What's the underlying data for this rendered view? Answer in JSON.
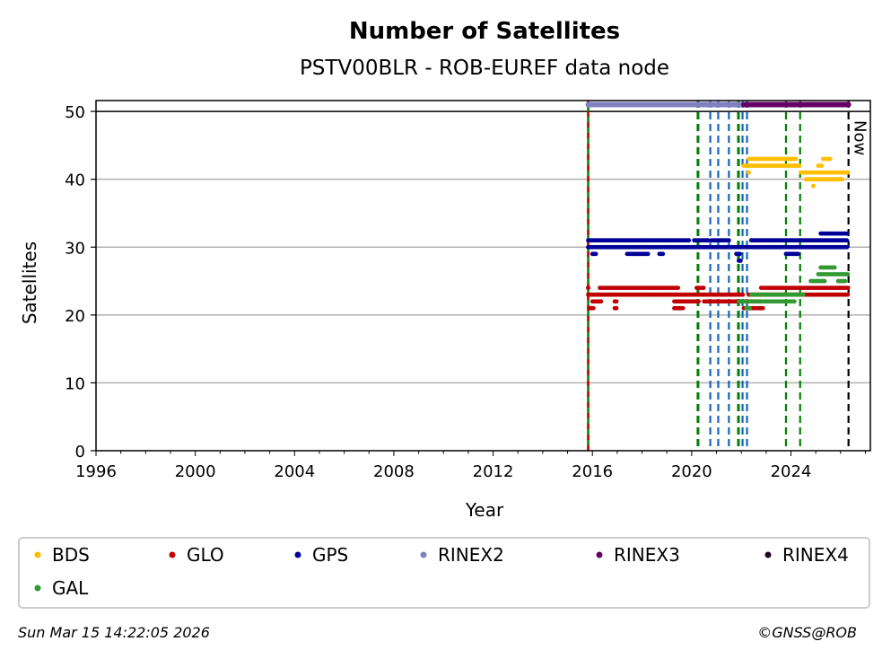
{
  "chart_data": {
    "type": "scatter",
    "title": "Number of Satellites",
    "subtitle": "PSTV00BLR - ROB-EUREF data node",
    "xlabel": "Year",
    "ylabel": "Satellites",
    "xlim": [
      1996,
      2027.2
    ],
    "ylim": [
      0,
      51.6
    ],
    "xticks": [
      "1996",
      "2000",
      "2004",
      "2008",
      "2012",
      "2016",
      "2020",
      "2024"
    ],
    "xtick_values": [
      1996,
      2000,
      2004,
      2008,
      2012,
      2016,
      2020,
      2024
    ],
    "yticks": [
      "0",
      "10",
      "20",
      "30",
      "40",
      "50"
    ],
    "ytick_values": [
      0,
      10,
      20,
      30,
      40,
      50
    ],
    "grid": "horizontal",
    "now_label": "Now",
    "now_year": 2026.32,
    "vlines": [
      {
        "year": 2015.83,
        "color": "#cc0000",
        "style": "red-green"
      },
      {
        "year": 2020.24,
        "color": "#008000"
      },
      {
        "year": 2020.27,
        "color": "#008000"
      },
      {
        "year": 2020.75,
        "color": "#1565c0"
      },
      {
        "year": 2021.07,
        "color": "#1565c0"
      },
      {
        "year": 2021.5,
        "color": "#1565c0"
      },
      {
        "year": 2021.87,
        "color": "#008000"
      },
      {
        "year": 2021.9,
        "color": "#008000"
      },
      {
        "year": 2022.05,
        "color": "#1565c0"
      },
      {
        "year": 2022.23,
        "color": "#1565c0"
      },
      {
        "year": 2023.8,
        "color": "#008000"
      },
      {
        "year": 2024.37,
        "color": "#008000"
      }
    ],
    "rinex_bars": [
      {
        "name": "RINEX2",
        "start": 2015.83,
        "end": 2022.1,
        "value": 51,
        "color": "#8080c0"
      },
      {
        "name": "RINEX3",
        "start": 2022.1,
        "end": 2026.32,
        "value": 51,
        "color": "#660066"
      }
    ],
    "series": [
      {
        "name": "BDS",
        "color": "#ffbf00",
        "segments": [
          [
            2022.1,
            2024.4,
            42
          ],
          [
            2022.3,
            2024.2,
            43
          ],
          [
            2024.4,
            2026.3,
            41
          ],
          [
            2024.6,
            2026.1,
            40
          ],
          [
            2025.3,
            2025.6,
            43
          ],
          [
            2025.1,
            2025.3,
            42
          ],
          [
            2024.9,
            2024.9,
            39
          ],
          [
            2022.3,
            2022.3,
            41
          ]
        ]
      },
      {
        "name": "GLO",
        "color": "#c00000",
        "segments": [
          [
            2015.83,
            2015.83,
            24
          ],
          [
            2016.3,
            2019.5,
            24
          ],
          [
            2015.83,
            2022.1,
            23
          ],
          [
            2016,
            2016.4,
            22
          ],
          [
            2016.9,
            2017,
            22
          ],
          [
            2019.3,
            2020.3,
            22
          ],
          [
            2015.9,
            2016.1,
            21
          ],
          [
            2016.9,
            2017,
            21
          ],
          [
            2019.3,
            2019.7,
            21
          ],
          [
            2020.2,
            2020.5,
            24
          ],
          [
            2020.5,
            2022.2,
            22
          ],
          [
            2022.1,
            2022.9,
            21
          ],
          [
            2022.8,
            2026.3,
            24
          ],
          [
            2022.3,
            2026.3,
            23
          ],
          [
            2021.8,
            2022.8,
            22
          ]
        ]
      },
      {
        "name": "GPS",
        "color": "#000099",
        "segments": [
          [
            2015.83,
            2019.9,
            31
          ],
          [
            2020.1,
            2020.7,
            31
          ],
          [
            2020.8,
            2021.5,
            31
          ],
          [
            2015.83,
            2026.3,
            30
          ],
          [
            2016,
            2016.2,
            29
          ],
          [
            2017.4,
            2018.3,
            29
          ],
          [
            2018.7,
            2018.9,
            29
          ],
          [
            2021.8,
            2022,
            29
          ],
          [
            2021.9,
            2022,
            28
          ],
          [
            2022.4,
            2026.3,
            31
          ],
          [
            2025.2,
            2026.3,
            32
          ],
          [
            2023.8,
            2024.3,
            29
          ]
        ]
      },
      {
        "name": "GAL",
        "color": "#339933",
        "segments": [
          [
            2021.9,
            2024.2,
            22
          ],
          [
            2022.4,
            2024.5,
            23
          ],
          [
            2022.2,
            2022.4,
            21
          ],
          [
            2024.8,
            2025.4,
            25
          ],
          [
            2025.9,
            2026.2,
            25
          ],
          [
            2025.1,
            2026.3,
            26
          ],
          [
            2025.2,
            2025.8,
            27
          ]
        ]
      },
      {
        "name": "RINEX2",
        "color": "#8080c0",
        "segments": []
      },
      {
        "name": "RINEX3",
        "color": "#660066",
        "segments": []
      },
      {
        "name": "RINEX4",
        "color": "#200020",
        "segments": []
      }
    ],
    "legend": {
      "placement": "bottom",
      "entries": [
        {
          "label": "BDS",
          "color": "#ffbf00"
        },
        {
          "label": "GLO",
          "color": "#c00000"
        },
        {
          "label": "GPS",
          "color": "#000099"
        },
        {
          "label": "RINEX2",
          "color": "#8080c0"
        },
        {
          "label": "RINEX3",
          "color": "#660066"
        },
        {
          "label": "RINEX4",
          "color": "#200020"
        },
        {
          "label": "GAL",
          "color": "#339933"
        }
      ]
    }
  },
  "footer": {
    "timestamp": "Sun Mar 15 14:22:05 2026",
    "credit": "©GNSS@ROB"
  }
}
